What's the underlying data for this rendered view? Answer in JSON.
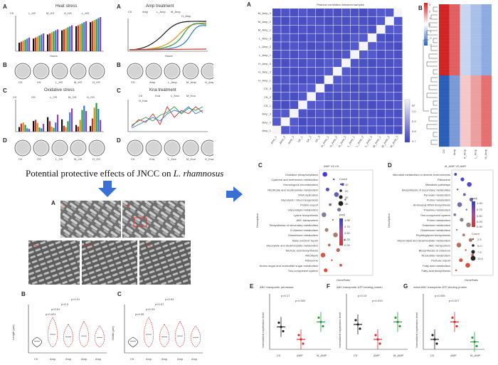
{
  "figure": {
    "caption": "Potential protective effects of JNCC on L. rhamnosus",
    "caption_main": "Potential protective effects of JNCC on",
    "caption_species": "L. rhamnosus"
  },
  "left_top": {
    "panelA1": {
      "letter": "A",
      "title": "Heat stress",
      "legend": [
        "CK",
        "L_HS",
        "M_HS",
        "H_HS",
        "L_HS",
        "M_HS",
        "H_HS"
      ],
      "x_label": "Hours",
      "y_label": "Growth curve (OD600 value)"
    },
    "panelA2": {
      "letter": "A",
      "title": "Amp treatment",
      "legend": [
        "CK",
        "Amp",
        "L_Amp",
        "M_Amp",
        "H_Amp"
      ],
      "x_label": "Hours",
      "y_label": "Growth curve (OD600 value)"
    },
    "panelB1": {
      "letter": "B",
      "plates": [
        "CK",
        "HS",
        "L_HS",
        "M_HS",
        "H_HS"
      ]
    },
    "panelB2": {
      "letter": "B",
      "plates": [
        "CK",
        "Amp",
        "L_Amp",
        "M_Amp",
        "H_Amp"
      ]
    },
    "panelC1": {
      "letter": "C",
      "title": "Oxidative stress",
      "legend": [
        "CK",
        "OS",
        "L_OS",
        "M_OS",
        "H_OS"
      ]
    },
    "panelC2": {
      "letter": "C",
      "title": "Kna treatment",
      "legend": [
        "CK",
        "Kna",
        "L_Kna",
        "M_Kna",
        "H_Kna"
      ]
    },
    "panelD1": {
      "letter": "D",
      "plates": [
        "CK",
        "OS",
        "L_OS",
        "M_OS",
        "H_OS"
      ]
    },
    "panelD2": {
      "letter": "D",
      "plates": [
        "CK",
        "Kna",
        "L_Kna",
        "M_Kna",
        "H_Kna"
      ]
    }
  },
  "left_bottom": {
    "sem": {
      "letter": "A",
      "labels": [
        "CK",
        "Amp",
        "L_Amp",
        "M_Amp",
        "H_Amp"
      ]
    },
    "violinB": {
      "letter": "B",
      "ylabel": "Length (μm)",
      "categories": [
        "CK",
        "Amp",
        "Amp",
        "Amp",
        "Amp"
      ],
      "pvals": [
        "p<0.001",
        "p<0.01",
        "p<0.3",
        "p<0.01"
      ]
    },
    "violinC": {
      "letter": "C",
      "ylabel": "Width (μm)",
      "categories": [
        "CK",
        "Amp",
        "Amp",
        "Amp",
        "Amp"
      ],
      "pvals": [
        "p<0.05",
        "p<0.03",
        "p<0.07",
        "p<0.03"
      ]
    }
  },
  "heatmapA": {
    "letter": "A",
    "title": "Pearson correlation between samples",
    "rows": [
      "M_Amp_3",
      "M_Amp_2",
      "M_Amp_1",
      "L_Amp_3",
      "L_Amp_2",
      "L_Amp_1",
      "H_Amp_3",
      "H_Amp_2",
      "H_Amp_1",
      "CK_3",
      "CK_2",
      "CK_1",
      "Amp_3",
      "Amp_2",
      "Amp_1"
    ],
    "cols": [
      "Amp_1",
      "Amp_2",
      "Amp_3",
      "CK_1",
      "CK_2",
      "CK_3",
      "H_Amp_1",
      "H_Amp_2",
      "H_Amp_3",
      "L_Amp_1",
      "L_Amp_2",
      "L_Amp_3",
      "M_Amp_1",
      "M_Amp_2",
      "M_Amp_3"
    ],
    "scale": {
      "label": "R²",
      "ticks": [
        "1.0",
        "0.9",
        "0.8",
        "0.7"
      ]
    }
  },
  "heatmapB": {
    "letter": "B",
    "cols": [
      "CK",
      "Amp",
      "H_Amp",
      "L_Amp",
      "M_Amp"
    ],
    "scale_ticks": [
      "3",
      "2",
      "1",
      "0",
      "-1",
      "-2",
      "-3"
    ]
  },
  "dotC": {
    "letter": "C",
    "title": "AMP VS CK",
    "ylab": "Description",
    "xlab": "GeneRatio",
    "terms": [
      "Oxidative phosphorylation",
      "Cysteine and methionine metabolism",
      "Homologous recombination",
      "Nicotinate and nicotinamide metabolism",
      "DNA replication",
      "Glycolysis / Gluconeogenesis",
      "Protein export",
      "Glycerolipid metabolism",
      "Lysine biosynthesis",
      "ABC transporters",
      "Biosynthesis of secondary metabolites",
      "D-Alanine metabolism",
      "Glutathione metabolism",
      "Base excision repair",
      "Glyoxylate and dicarboxylate metabolism",
      "Teichoic acid biosynthesis",
      "Riboflavin",
      "Ribosome",
      "Amino sugar and nucleotide sugar metabolism",
      "Two-component system"
    ],
    "legend_count": {
      "title": "Count",
      "values": [
        "10",
        "20",
        "30",
        "40"
      ]
    },
    "legend_padj": {
      "title": "padj",
      "ticks": [
        "1.00",
        "0.75",
        "0.50",
        "0.25",
        "0.00"
      ]
    }
  },
  "dotD": {
    "letter": "D",
    "title": "M_AMP VS AMP",
    "ylab": "Description",
    "xlab": "GeneRatio",
    "terms": [
      "Microbial metabolism in diverse environments",
      "Ribosome",
      "Metabolic pathways",
      "Biosynthesis of secondary metabolites",
      "Pyruvate metabolism",
      "Purine metabolism",
      "Aminoacyl-tRNA biosynthesis",
      "Thiamine metabolism",
      "Two-component system",
      "Purine metabolism",
      "Galactose metabolism",
      "Glutathione metabolism",
      "Peptidoglycan biosynthesis",
      "Glycerolipid and dicarboxylate metabolism",
      "ABC transporters",
      "Biosynthesis of cofactors",
      "Nucleotide metabolism",
      "Pentose export",
      "Fatty acid metabolism",
      "Fatty acid biosynthesis"
    ],
    "legend_padj": {
      "title": "padj",
      "ticks": [
        "1.00",
        "0.75",
        "0.50",
        "0.25",
        "0.00"
      ]
    },
    "legend_count": {
      "title": "Count",
      "values": [
        "2.5",
        "5.0",
        "7.5",
        "10.0"
      ]
    }
  },
  "chartE": {
    "letter": "E",
    "title": "ABC transporter permease",
    "ylabel": "Normalized expression level",
    "categories": [
      "CK",
      "AMP",
      "M_AMP"
    ],
    "pvals": [
      "p=0.17",
      "p=0.051"
    ]
  },
  "chartF": {
    "letter": "F",
    "title": "ABC transporter ATP-binding protein",
    "ylabel": "Normalized expression level",
    "categories": [
      "CK",
      "AMP",
      "M_AMP"
    ],
    "pvals": [
      "p=0.10",
      "p=0.019"
    ]
  },
  "chartG": {
    "letter": "G",
    "title": "metal ABC transporter ATP-binding protein",
    "ylabel": "Normalized expression level",
    "categories": [
      "CK",
      "AMP",
      "M_AMP"
    ],
    "pvals": [
      "p=0.055",
      "p=0.027"
    ]
  },
  "colors": {
    "arrow": "#3a6fd6",
    "heat_low": "#3a3fc2",
    "heat_high": "#f2f2f8",
    "red": "#e0322d",
    "blue": "#2f6cb8"
  }
}
